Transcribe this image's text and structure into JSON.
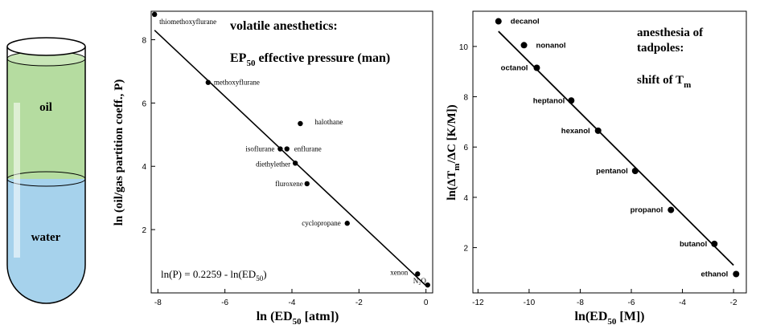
{
  "tube": {
    "oil_label": "oil",
    "water_label": "water",
    "colors": {
      "oil": "#b5dca0",
      "water": "#a6d2ec",
      "glass": "#ffffff"
    }
  },
  "chart_data": [
    {
      "type": "scatter",
      "title": "volatile anesthetics:",
      "subtitle_main": "EP",
      "subtitle_sub": "50",
      "subtitle_rest": " effective pressure (man)",
      "xlabel_main": "ln (ED",
      "xlabel_sub": "50",
      "xlabel_rest": " [atm])",
      "ylabel": "ln (oil/gas partition coeff., P)",
      "equation_main": "ln(P) = 0.2259 - ln(ED",
      "equation_sub": "50",
      "equation_rest": ")",
      "xlim": [
        -8.2,
        0.2
      ],
      "ylim": [
        0,
        8.9
      ],
      "xticks": [
        -8,
        -6,
        -4,
        -2,
        0
      ],
      "yticks": [
        2,
        4,
        6,
        8
      ],
      "fit_line": {
        "x": [
          -8.1,
          0.0
        ],
        "y": [
          8.3,
          0.23
        ]
      },
      "points": [
        {
          "name": "thiomethoxyflurane",
          "x": -8.1,
          "y": 8.8
        },
        {
          "name": "methoxyflurane",
          "x": -6.5,
          "y": 6.65
        },
        {
          "name": "halothane",
          "x": -3.75,
          "y": 5.35
        },
        {
          "name": "isoflurane",
          "x": -4.35,
          "y": 4.55
        },
        {
          "name": "enflurane",
          "x": -4.15,
          "y": 4.55
        },
        {
          "name": "diethylether",
          "x": -3.9,
          "y": 4.1
        },
        {
          "name": "fluroxene",
          "x": -3.55,
          "y": 3.45
        },
        {
          "name": "cyclopropane",
          "x": -2.35,
          "y": 2.2
        },
        {
          "name": "xenon",
          "x": -0.25,
          "y": 0.6
        },
        {
          "name": "N₂O",
          "x": 0.05,
          "y": 0.25
        }
      ]
    },
    {
      "type": "scatter",
      "title_lines": [
        "anesthesia of",
        "tadpoles:"
      ],
      "shift_main": "shift of T",
      "shift_sub": "m",
      "xlabel_main": "ln(ED",
      "xlabel_sub": "50",
      "xlabel_rest": " [M])",
      "ylabel_main": "ln(ΔT",
      "ylabel_sub": "m",
      "ylabel_rest": "/ΔC  [K/M])",
      "xlim": [
        -12.2,
        -1.5
      ],
      "ylim": [
        0.2,
        11.4
      ],
      "xticks": [
        -12,
        -10,
        -8,
        -6,
        -4,
        -2
      ],
      "yticks": [
        2,
        4,
        6,
        8,
        10
      ],
      "fit_line": {
        "x": [
          -11.2,
          -2.0
        ],
        "y": [
          10.6,
          1.3
        ]
      },
      "points": [
        {
          "name": "decanol",
          "x": -11.2,
          "y": 11.0
        },
        {
          "name": "nonanol",
          "x": -10.2,
          "y": 10.05
        },
        {
          "name": "octanol",
          "x": -9.7,
          "y": 9.15
        },
        {
          "name": "heptanol",
          "x": -8.35,
          "y": 7.85
        },
        {
          "name": "hexanol",
          "x": -7.3,
          "y": 6.65
        },
        {
          "name": "pentanol",
          "x": -5.85,
          "y": 5.05
        },
        {
          "name": "propanol",
          "x": -4.45,
          "y": 3.5
        },
        {
          "name": "butanol",
          "x": -2.75,
          "y": 2.15
        },
        {
          "name": "ethanol",
          "x": -1.9,
          "y": 0.95
        }
      ]
    }
  ]
}
